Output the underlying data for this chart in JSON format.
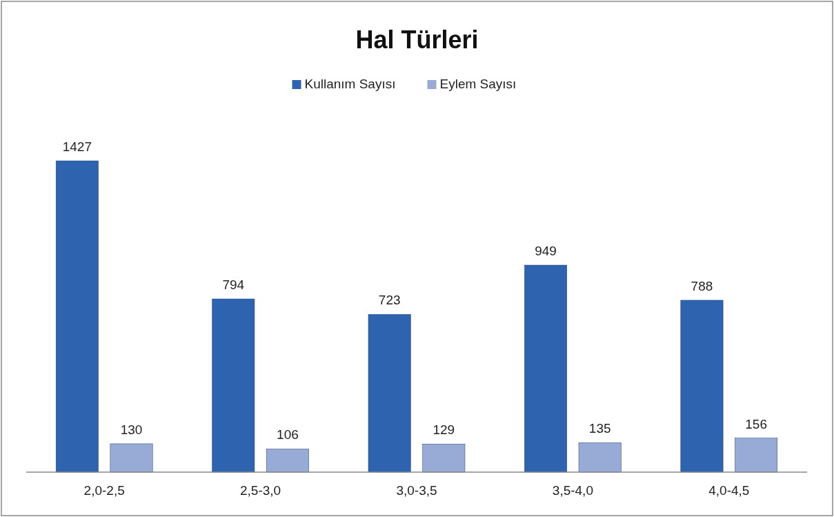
{
  "chart_data": {
    "type": "bar",
    "title": "Hal Türleri",
    "categories": [
      "2,0-2,5",
      "2,5-3,0",
      "3,0-3,5",
      "3,5-4,0",
      "4,0-4,5"
    ],
    "series": [
      {
        "name": "Kullanım Sayısı",
        "color": "#2e63b0",
        "values": [
          1427,
          794,
          723,
          949,
          788
        ]
      },
      {
        "name": "Eylem Sayısı",
        "color": "#97abd6",
        "values": [
          130,
          106,
          129,
          135,
          156
        ]
      }
    ],
    "data_labels": true,
    "legend": "top"
  }
}
